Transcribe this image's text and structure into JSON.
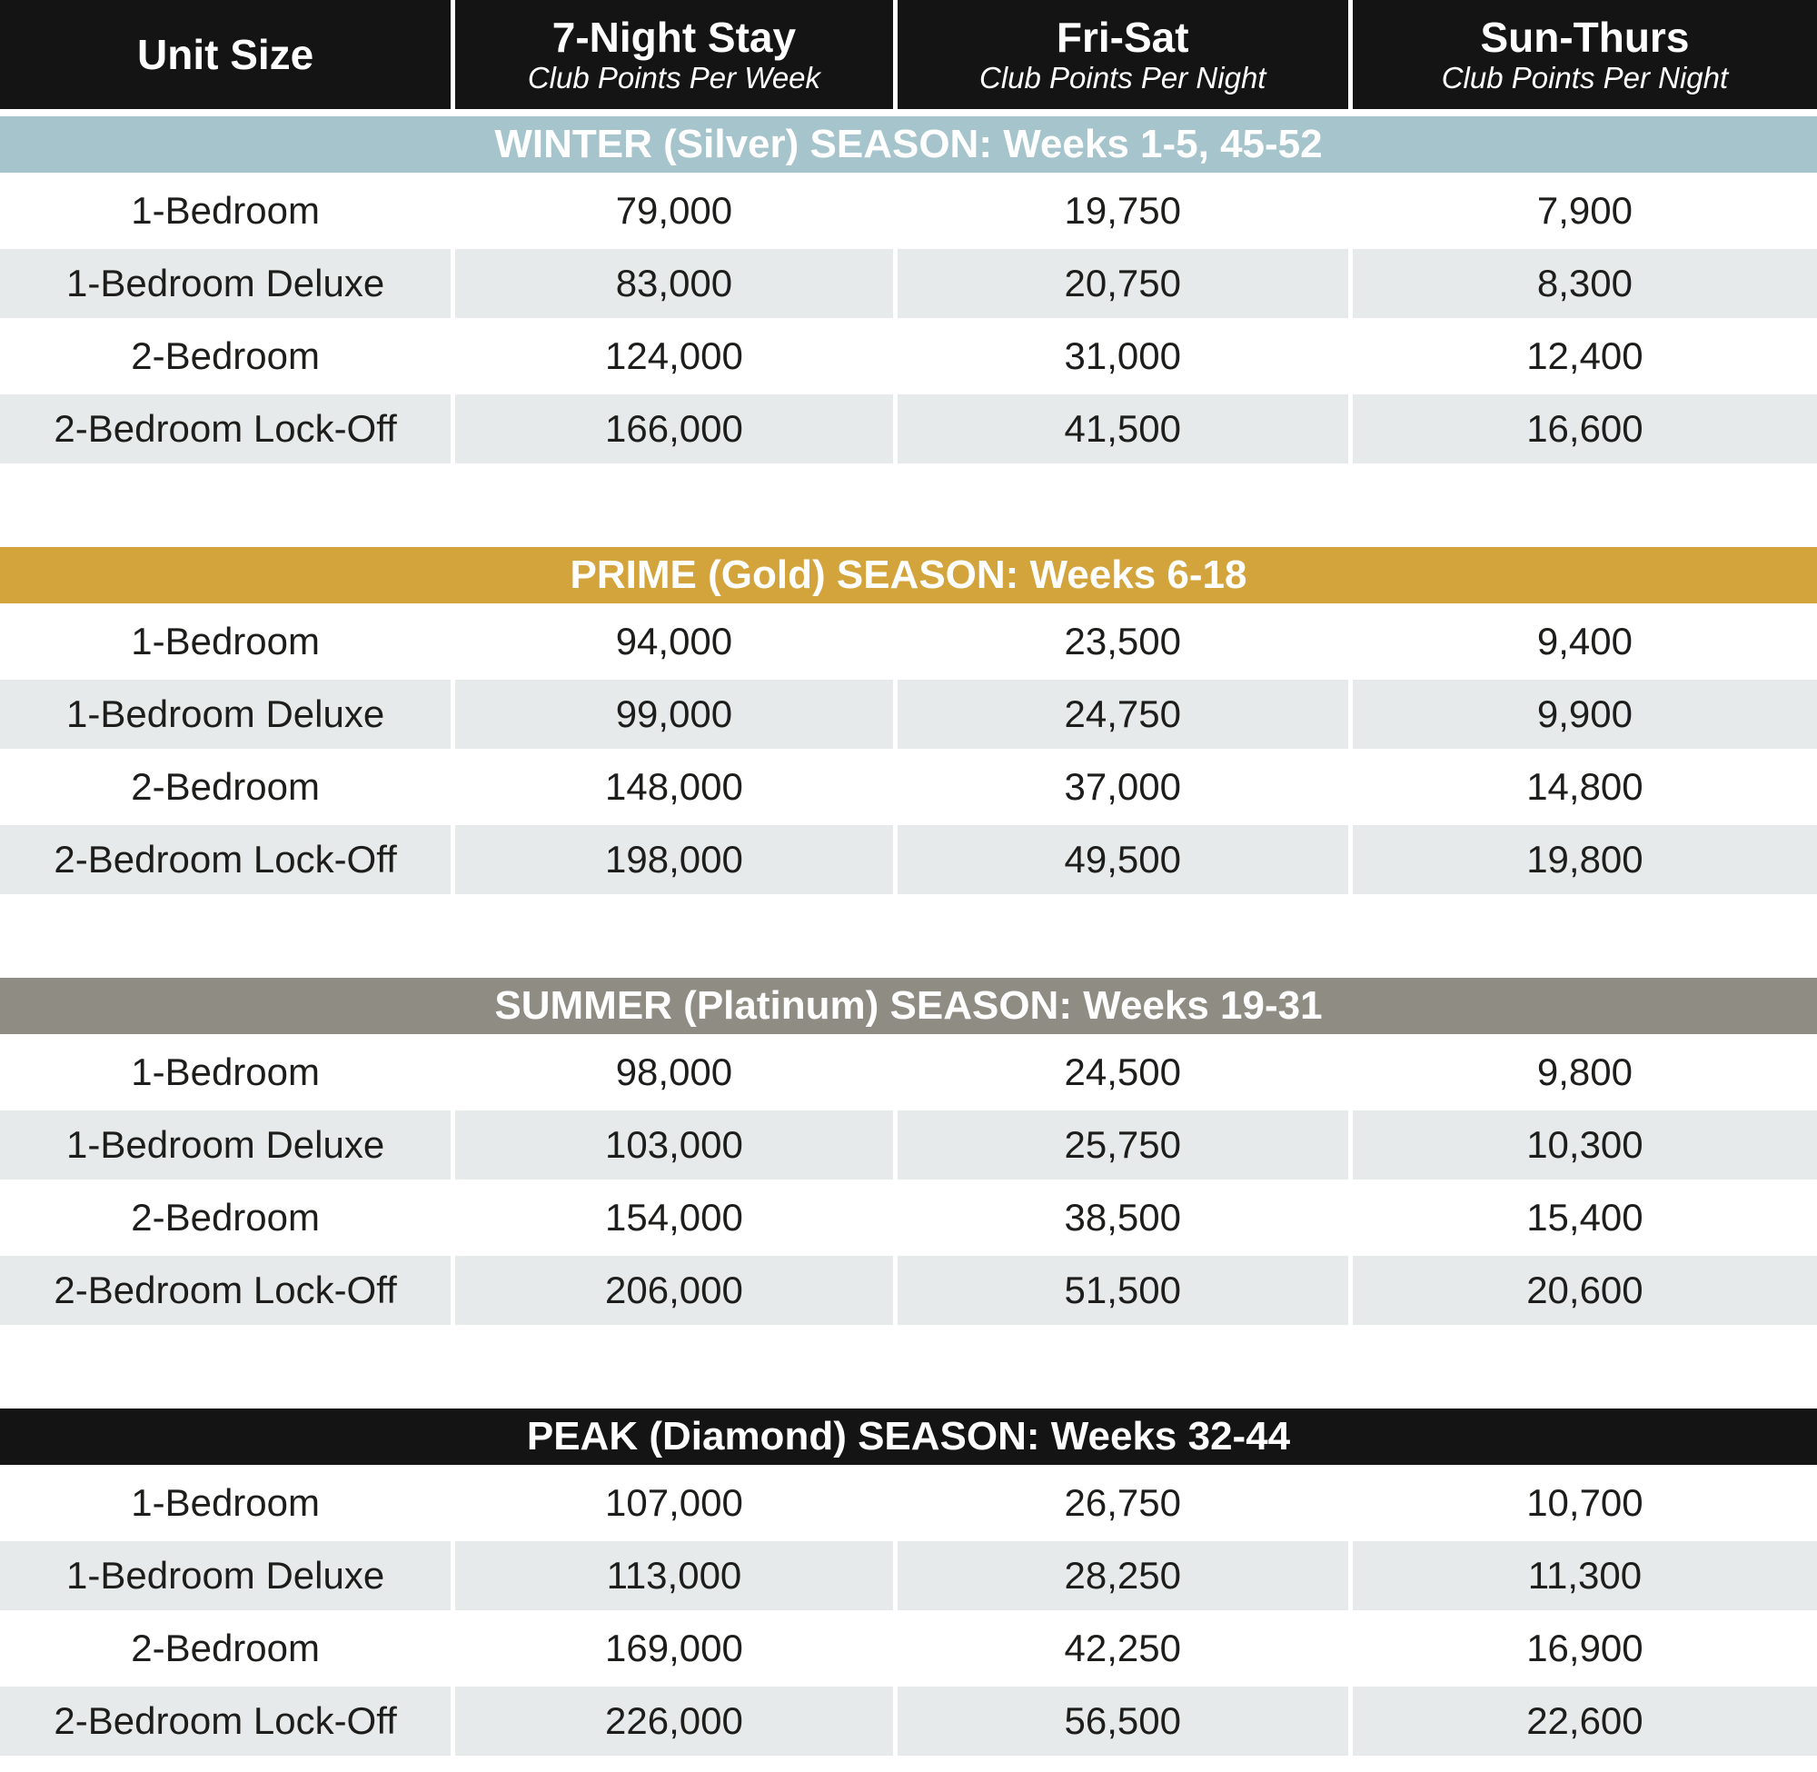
{
  "header": {
    "columns": [
      {
        "title": "Unit Size",
        "subtitle": ""
      },
      {
        "title": "7-Night Stay",
        "subtitle": "Club Points Per Week"
      },
      {
        "title": "Fri-Sat",
        "subtitle": "Club Points Per Night"
      },
      {
        "title": "Sun-Thurs",
        "subtitle": "Club Points Per Night"
      }
    ]
  },
  "colors": {
    "header_bg": "#141414",
    "winter": "#a6c4cc",
    "prime": "#d2a43b",
    "summer": "#8f8d83",
    "peak": "#141414",
    "row_alt": "#e7eaea",
    "text": "#1d1d1b"
  },
  "seasons": [
    {
      "label": "WINTER (Silver) SEASON: Weeks 1-5, 45-52",
      "theme": "winter",
      "rows": [
        {
          "unit": "1-Bedroom",
          "week": "79,000",
          "fri_sat": "19,750",
          "sun_thurs": "7,900"
        },
        {
          "unit": "1-Bedroom Deluxe",
          "week": "83,000",
          "fri_sat": "20,750",
          "sun_thurs": "8,300"
        },
        {
          "unit": "2-Bedroom",
          "week": "124,000",
          "fri_sat": "31,000",
          "sun_thurs": "12,400"
        },
        {
          "unit": "2-Bedroom Lock-Off",
          "week": "166,000",
          "fri_sat": "41,500",
          "sun_thurs": "16,600"
        }
      ]
    },
    {
      "label": "PRIME (Gold) SEASON: Weeks 6-18",
      "theme": "prime",
      "rows": [
        {
          "unit": "1-Bedroom",
          "week": "94,000",
          "fri_sat": "23,500",
          "sun_thurs": "9,400"
        },
        {
          "unit": "1-Bedroom Deluxe",
          "week": "99,000",
          "fri_sat": "24,750",
          "sun_thurs": "9,900"
        },
        {
          "unit": "2-Bedroom",
          "week": "148,000",
          "fri_sat": "37,000",
          "sun_thurs": "14,800"
        },
        {
          "unit": "2-Bedroom Lock-Off",
          "week": "198,000",
          "fri_sat": "49,500",
          "sun_thurs": "19,800"
        }
      ]
    },
    {
      "label": "SUMMER (Platinum) SEASON: Weeks 19-31",
      "theme": "summer",
      "rows": [
        {
          "unit": "1-Bedroom",
          "week": "98,000",
          "fri_sat": "24,500",
          "sun_thurs": "9,800"
        },
        {
          "unit": "1-Bedroom Deluxe",
          "week": "103,000",
          "fri_sat": "25,750",
          "sun_thurs": "10,300"
        },
        {
          "unit": "2-Bedroom",
          "week": "154,000",
          "fri_sat": "38,500",
          "sun_thurs": "15,400"
        },
        {
          "unit": "2-Bedroom Lock-Off",
          "week": "206,000",
          "fri_sat": "51,500",
          "sun_thurs": "20,600"
        }
      ]
    },
    {
      "label": "PEAK (Diamond) SEASON: Weeks 32-44",
      "theme": "peak",
      "rows": [
        {
          "unit": "1-Bedroom",
          "week": "107,000",
          "fri_sat": "26,750",
          "sun_thurs": "10,700"
        },
        {
          "unit": "1-Bedroom Deluxe",
          "week": "113,000",
          "fri_sat": "28,250",
          "sun_thurs": "11,300"
        },
        {
          "unit": "2-Bedroom",
          "week": "169,000",
          "fri_sat": "42,250",
          "sun_thurs": "16,900"
        },
        {
          "unit": "2-Bedroom Lock-Off",
          "week": "226,000",
          "fri_sat": "56,500",
          "sun_thurs": "22,600"
        }
      ]
    }
  ]
}
